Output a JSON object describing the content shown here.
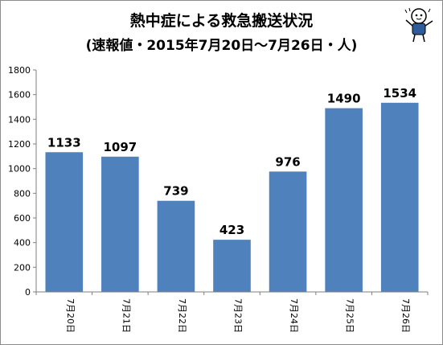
{
  "chart_data": {
    "type": "bar",
    "title": "熱中症による救急搬送状況",
    "subtitle": "(速報値・2015年7月20日～7月26日・人)",
    "categories": [
      "7月20日",
      "7月21日",
      "7月22日",
      "7月23日",
      "7月24日",
      "7月25日",
      "7月26日"
    ],
    "values": [
      1133,
      1097,
      739,
      423,
      976,
      1490,
      1534
    ],
    "ylim": [
      0,
      1800
    ],
    "yticks": [
      0,
      200,
      400,
      600,
      800,
      1000,
      1200,
      1400,
      1600,
      1800
    ],
    "grid": false,
    "legend": "none",
    "bar_color": "#4f81bd",
    "axis_color": "#7f7f7f"
  },
  "mascot_icon": "mascot-character-icon"
}
